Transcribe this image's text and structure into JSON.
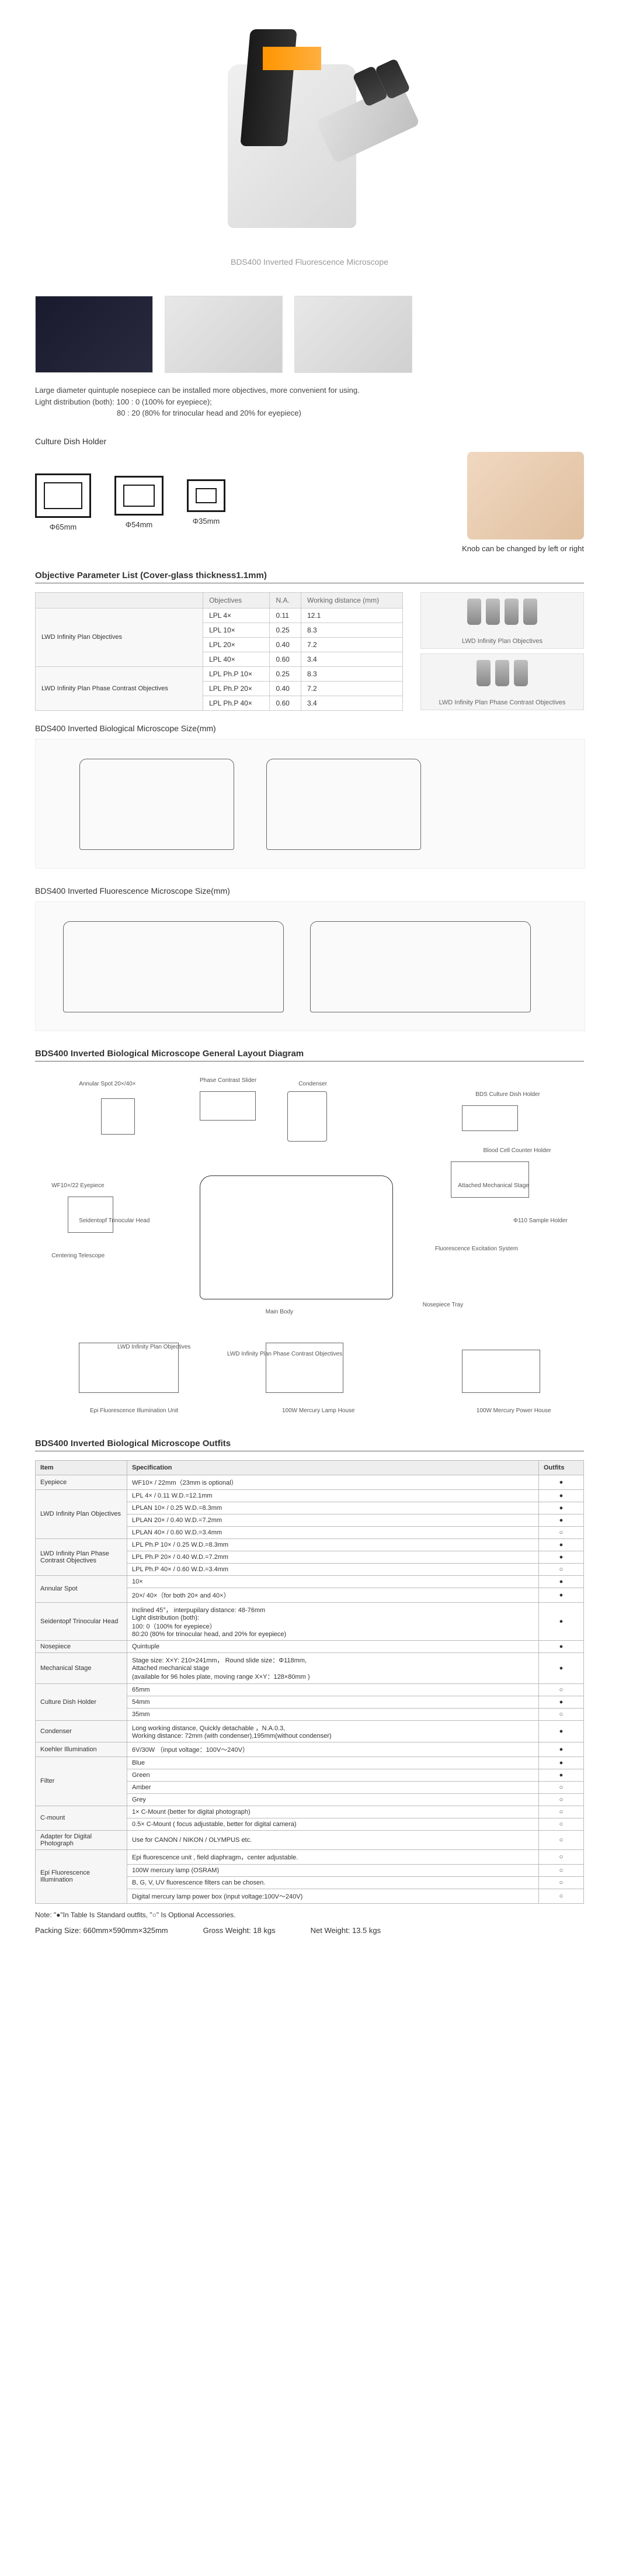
{
  "hero": {
    "caption": "BDS400 Inverted Fluorescence Microscope"
  },
  "description": {
    "line1": "Large diameter quintuple nosepiece can be installed more objectives, more convenient for using.",
    "line2": "Light distribution (both): 100 : 0 (100% for eyepiece);",
    "line3": "80 : 20 (80% for trinocular head and 20% for eyepiece)"
  },
  "dishHolder": {
    "title": "Culture Dish Holder",
    "items": [
      {
        "label": "Φ65mm"
      },
      {
        "label": "Φ54mm"
      },
      {
        "label": "Φ35mm"
      }
    ],
    "knobText": "Knob can be changed by left or right"
  },
  "objParams": {
    "title": "Objective Parameter List (Cover-glass thickness1.1mm)",
    "headers": [
      "",
      "Objectives",
      "N.A.",
      "Working distance (mm)"
    ],
    "groups": [
      {
        "name": "LWD Infinity Plan Objectives",
        "rows": [
          {
            "obj": "LPL   4×",
            "na": "0.11",
            "wd": "12.1"
          },
          {
            "obj": "LPL 10×",
            "na": "0.25",
            "wd": "8.3"
          },
          {
            "obj": "LPL 20×",
            "na": "0.40",
            "wd": "7.2"
          },
          {
            "obj": "LPL 40×",
            "na": "0.60",
            "wd": "3.4"
          }
        ]
      },
      {
        "name": "LWD Infinity Plan Phase Contrast Objectives",
        "rows": [
          {
            "obj": "LPL Ph.P 10×",
            "na": "0.25",
            "wd": "8.3"
          },
          {
            "obj": "LPL Ph.P 20×",
            "na": "0.40",
            "wd": "7.2"
          },
          {
            "obj": "LPL Ph.P 40×",
            "na": "0.60",
            "wd": "3.4"
          }
        ]
      }
    ],
    "imgLabels": [
      "LWD Infinity Plan Objectives",
      "LWD Infinity Plan Phase Contrast Objectives"
    ]
  },
  "sizeDiagrams": {
    "bio": "BDS400 Inverted Biological Microscope Size(mm)",
    "fluor": "BDS400 Inverted Fluorescence Microscope Size(mm)"
  },
  "layoutDiagram": {
    "title": "BDS400 Inverted Biological Microscope General Layout Diagram",
    "labels": [
      "Phase Contrast Slider",
      "Annular Spot 20×/40×",
      "Condenser",
      "BDS Culture Dish Holder",
      "WF10×/22 Eyepiece",
      "Attached Mechanical Stage",
      "Φ110 Sample Holder",
      "Fluorescence Excitation System",
      "Centering Telescope",
      "Seidentopf Trinocular Head",
      "Main Body",
      "LWD Infinity Plan Objectives",
      "LWD Infinity Plan Phase Contrast Objectives",
      "Epi Fluorescence Illumination Unit",
      "100W Mercury Lamp House",
      "100W Mercury Power House",
      "Nosepiece Tray",
      "Blood Cell Counter Holder"
    ]
  },
  "outfits": {
    "title": "BDS400 Inverted Biological Microscope Outfits",
    "headers": [
      "Item",
      "Specification",
      "Outfits"
    ],
    "rows": [
      {
        "item": "Eyepiece",
        "spec": "WF10× / 22mm（23mm is optional）",
        "mark": "●",
        "rowspan": 1
      },
      {
        "item": "LWD Infinity Plan Objectives",
        "spec": "LPL 4× / 0.11            W.D.=12.1mm",
        "mark": "●",
        "rowspan": 4,
        "group": true
      },
      {
        "spec": "LPLAN 10× / 0.25        W.D.=8.3mm",
        "mark": "●"
      },
      {
        "spec": "LPLAN 20× / 0.40        W.D.=7.2mm",
        "mark": "●"
      },
      {
        "spec": "LPLAN 40× / 0.60        W.D.=3.4mm",
        "mark": "○"
      },
      {
        "item": "LWD Infinity Plan Phase Contrast Objectives",
        "spec": "LPL Ph.P 10× / 0.25     W.D.=8.3mm",
        "mark": "●",
        "rowspan": 3,
        "group": true
      },
      {
        "spec": "LPL Ph.P 20× / 0.40     W.D.=7.2mm",
        "mark": "●"
      },
      {
        "spec": "LPL Ph.P 40× / 0.60     W.D.=3.4mm",
        "mark": "○"
      },
      {
        "item": "Annular Spot",
        "spec": "10×",
        "mark": "●",
        "rowspan": 2,
        "group": true
      },
      {
        "spec": "20×/ 40×（for both 20× and 40×）",
        "mark": "●"
      },
      {
        "item": "Seidentopf Trinocular Head",
        "spec": "Inclined 45°， interpupilary distance: 48-76mm\nLight distribution (both):\n100: 0（100% for eyepiece）\n80:20 (80% for trinocular head, and 20% for eyepiece)",
        "mark": "●",
        "rowspan": 1
      },
      {
        "item": "Nosepiece",
        "spec": "Quintuple",
        "mark": "●",
        "rowspan": 1
      },
      {
        "item": "Mechanical Stage",
        "spec": "Stage size: X×Y: 210×241mm，  Round slide size：Φ118mm,\nAttached mechanical stage\n(available for 96 holes plate, moving range X×Y：128×80mm )",
        "mark": "●",
        "rowspan": 1
      },
      {
        "item": "Culture Dish Holder",
        "spec": "65mm",
        "mark": "○",
        "rowspan": 3,
        "group": true
      },
      {
        "spec": "54mm",
        "mark": "●"
      },
      {
        "spec": "35mm",
        "mark": "○"
      },
      {
        "item": "Condenser",
        "spec": "Long working distance, Quickly detachable ，N.A.0.3,\nWorking distance: 72mm (with condenser),195mm(without condenser)",
        "mark": "●",
        "rowspan": 1
      },
      {
        "item": "Koehler Illumination",
        "spec": "6V/30W （input voltage：100V～240V）",
        "mark": "●",
        "rowspan": 1
      },
      {
        "item": "Filter",
        "spec": "Blue",
        "mark": "●",
        "rowspan": 4,
        "group": true
      },
      {
        "spec": "Green",
        "mark": "●"
      },
      {
        "spec": "Amber",
        "mark": "○"
      },
      {
        "spec": "Grey",
        "mark": "○"
      },
      {
        "item": "C-mount",
        "spec": "1× C-Mount (better for digital photograph)",
        "mark": "○",
        "rowspan": 2,
        "group": true
      },
      {
        "spec": "0.5× C-Mount ( focus adjustable, better for digital camera)",
        "mark": "○"
      },
      {
        "item": "Adapter for Digital Photograph",
        "spec": "Use for CANON / NIKON / OLYMPUS etc.",
        "mark": "○",
        "rowspan": 1
      },
      {
        "item": "Epi Fluorescence Illumination",
        "spec": "Epi fluorescence unit , field diaphragm，center adjustable.",
        "mark": "○",
        "rowspan": 4,
        "group": true
      },
      {
        "spec": "100W mercury lamp (OSRAM)",
        "mark": "○"
      },
      {
        "spec": "B, G, V, UV fluorescence filters can be chosen.",
        "mark": "○"
      },
      {
        "spec": "Digital mercury lamp power box (input voltage:100V～240V)",
        "mark": "○"
      }
    ],
    "note": "Note: \"●\"In Table Is Standard outfits, \"○\" Is Optional Accessories.",
    "packing": "Packing Size: 660mm×590mm×325mm",
    "gross": "Gross Weight: 18 kgs",
    "net": "Net Weight: 13.5 kgs"
  }
}
